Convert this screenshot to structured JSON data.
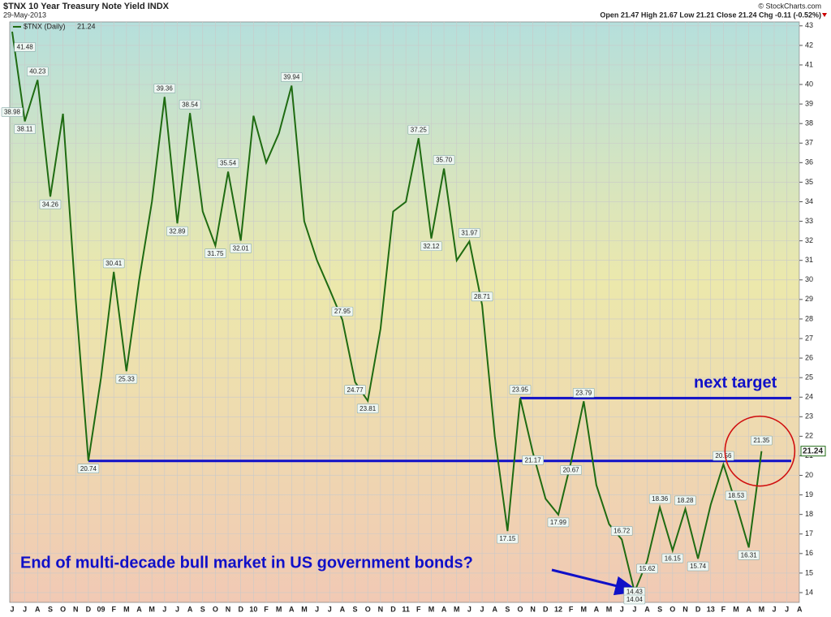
{
  "chart_data": {
    "type": "line",
    "title": "$TNX 10 Year Treasury Note Yield INDX",
    "date": "29-May-2013",
    "quote": "Open 21.47  High 21.67  Low 21.21  Close 21.24  Chg -0.11 (-0.52%)",
    "source": "© StockCharts.com",
    "categories": [
      "J",
      "J",
      "A",
      "S",
      "O",
      "N",
      "D",
      "09",
      "F",
      "M",
      "A",
      "M",
      "J",
      "J",
      "A",
      "S",
      "O",
      "N",
      "D",
      "10",
      "F",
      "M",
      "A",
      "M",
      "J",
      "J",
      "A",
      "S",
      "O",
      "N",
      "D",
      "11",
      "F",
      "M",
      "A",
      "M",
      "J",
      "J",
      "A",
      "S",
      "O",
      "N",
      "D",
      "12",
      "F",
      "M",
      "A",
      "M",
      "J",
      "J",
      "A",
      "S",
      "O",
      "N",
      "D",
      "13",
      "F",
      "M",
      "A",
      "M",
      "J",
      "J",
      "A"
    ],
    "series": [
      {
        "name": "$TNX (Daily)",
        "color": "#1f6b12",
        "x": [
          "2008-06",
          "2008-07",
          "2008-08",
          "2008-09",
          "2008-10",
          "2008-11",
          "2008-12",
          "2009-01",
          "2009-02",
          "2009-03",
          "2009-04",
          "2009-05",
          "2009-06",
          "2009-07",
          "2009-08",
          "2009-09",
          "2009-10",
          "2009-11",
          "2009-12",
          "2010-01",
          "2010-02",
          "2010-03",
          "2010-04",
          "2010-05",
          "2010-06",
          "2010-07",
          "2010-08",
          "2010-09",
          "2010-10",
          "2010-11",
          "2010-12",
          "2011-01",
          "2011-02",
          "2011-03",
          "2011-04",
          "2011-05",
          "2011-06",
          "2011-07",
          "2011-08",
          "2011-09",
          "2011-10",
          "2011-11",
          "2011-12",
          "2012-01",
          "2012-02",
          "2012-03",
          "2012-04",
          "2012-05",
          "2012-06",
          "2012-07",
          "2012-08",
          "2012-09",
          "2012-10",
          "2012-11",
          "2012-12",
          "2013-01",
          "2013-02",
          "2013-03",
          "2013-04",
          "2013-05"
        ],
        "values": [
          42.7,
          38.11,
          40.23,
          34.26,
          38.5,
          29.0,
          20.74,
          25.0,
          30.41,
          25.33,
          30.0,
          34.0,
          39.36,
          32.89,
          38.54,
          33.5,
          31.75,
          35.54,
          32.01,
          38.4,
          36.0,
          37.5,
          39.94,
          33.0,
          31.0,
          29.5,
          27.95,
          24.77,
          23.81,
          27.5,
          33.5,
          34.0,
          37.25,
          32.12,
          35.7,
          31.0,
          31.97,
          28.71,
          22.0,
          17.15,
          23.95,
          21.17,
          18.8,
          17.99,
          20.67,
          23.79,
          19.5,
          17.5,
          16.72,
          14.04,
          15.62,
          18.36,
          16.15,
          18.28,
          15.74,
          18.5,
          20.56,
          18.53,
          16.31,
          21.24
        ]
      }
    ],
    "annotations": [
      {
        "x": "2008-06",
        "value": 38.98,
        "label": "38.98"
      },
      {
        "x": "2008-07",
        "value": 41.48,
        "label": "41.48"
      },
      {
        "x": "2008-07",
        "value": 38.11,
        "label": "38.11"
      },
      {
        "x": "2008-08",
        "value": 40.23,
        "label": "40.23"
      },
      {
        "x": "2008-09",
        "value": 34.26,
        "label": "34.26"
      },
      {
        "x": "2008-12",
        "value": 20.74,
        "label": "20.74"
      },
      {
        "x": "2009-02",
        "value": 30.41,
        "label": "30.41"
      },
      {
        "x": "2009-03",
        "value": 25.33,
        "label": "25.33"
      },
      {
        "x": "2009-06",
        "value": 39.36,
        "label": "39.36"
      },
      {
        "x": "2009-07",
        "value": 32.89,
        "label": "32.89"
      },
      {
        "x": "2009-08",
        "value": 38.54,
        "label": "38.54"
      },
      {
        "x": "2009-10",
        "value": 31.75,
        "label": "31.75"
      },
      {
        "x": "2009-11",
        "value": 35.54,
        "label": "35.54"
      },
      {
        "x": "2009-12",
        "value": 32.01,
        "label": "32.01"
      },
      {
        "x": "2010-04",
        "value": 39.94,
        "label": "39.94"
      },
      {
        "x": "2010-08",
        "value": 27.95,
        "label": "27.95"
      },
      {
        "x": "2010-09",
        "value": 24.77,
        "label": "24.77"
      },
      {
        "x": "2010-10",
        "value": 23.81,
        "label": "23.81"
      },
      {
        "x": "2011-02",
        "value": 37.25,
        "label": "37.25"
      },
      {
        "x": "2011-03",
        "value": 32.12,
        "label": "32.12"
      },
      {
        "x": "2011-04",
        "value": 35.7,
        "label": "35.70"
      },
      {
        "x": "2011-06",
        "value": 31.97,
        "label": "31.97"
      },
      {
        "x": "2011-07",
        "value": 28.71,
        "label": "28.71"
      },
      {
        "x": "2011-09",
        "value": 17.15,
        "label": "17.15"
      },
      {
        "x": "2011-10",
        "value": 23.95,
        "label": "23.95"
      },
      {
        "x": "2011-11",
        "value": 21.17,
        "label": "21.17"
      },
      {
        "x": "2012-01",
        "value": 17.99,
        "label": "17.99"
      },
      {
        "x": "2012-02",
        "value": 20.67,
        "label": "20.67"
      },
      {
        "x": "2012-03",
        "value": 23.79,
        "label": "23.79"
      },
      {
        "x": "2012-06",
        "value": 16.72,
        "label": "16.72"
      },
      {
        "x": "2012-07",
        "value": 14.43,
        "label": "14.43"
      },
      {
        "x": "2012-07",
        "value": 14.04,
        "label": "14.04"
      },
      {
        "x": "2012-08",
        "value": 15.62,
        "label": "15.62"
      },
      {
        "x": "2012-09",
        "value": 18.36,
        "label": "18.36"
      },
      {
        "x": "2012-10",
        "value": 16.15,
        "label": "16.15"
      },
      {
        "x": "2012-11",
        "value": 18.28,
        "label": "18.28"
      },
      {
        "x": "2012-12",
        "value": 15.74,
        "label": "15.74"
      },
      {
        "x": "2013-02",
        "value": 20.56,
        "label": "20.56"
      },
      {
        "x": "2013-03",
        "value": 18.53,
        "label": "18.53"
      },
      {
        "x": "2013-04",
        "value": 16.31,
        "label": "16.31"
      },
      {
        "x": "2013-05",
        "value": 21.35,
        "label": "21.35"
      }
    ],
    "levels": [
      {
        "value": 20.74,
        "from": "2008-12",
        "color": "#1010c8"
      },
      {
        "value": 23.95,
        "from": "2011-10",
        "color": "#1010c8",
        "label": "next target"
      }
    ],
    "note": "End of multi-decade bull market in US government bonds?",
    "ylim": [
      13.5,
      43.2
    ],
    "yticks": [
      14,
      15,
      16,
      17,
      18,
      19,
      20,
      21,
      22,
      23,
      24,
      25,
      26,
      27,
      28,
      29,
      30,
      31,
      32,
      33,
      34,
      35,
      36,
      37,
      38,
      39,
      40,
      41,
      42,
      43
    ],
    "grid": true
  }
}
